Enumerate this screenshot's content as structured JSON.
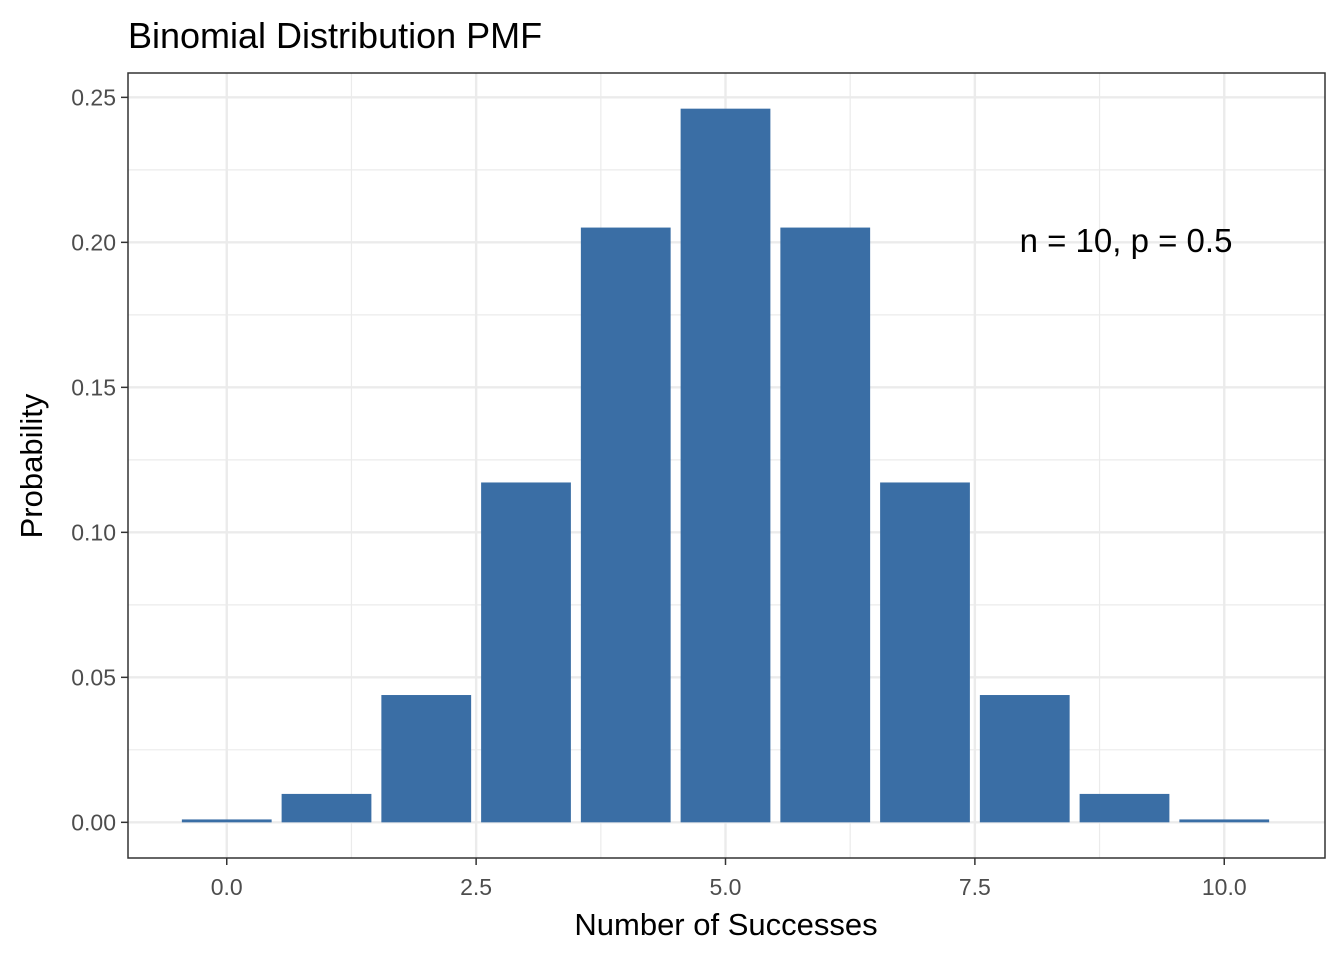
{
  "chart_data": {
    "type": "bar",
    "title": "Binomial Distribution PMF",
    "xlabel": "Number of Successes",
    "ylabel": "Probability",
    "annotation": "n = 10, p = 0.5",
    "x": [
      0,
      1,
      2,
      3,
      4,
      5,
      6,
      7,
      8,
      9,
      10
    ],
    "values": [
      0.001,
      0.0098,
      0.0439,
      0.1172,
      0.2051,
      0.2461,
      0.2051,
      0.1172,
      0.0439,
      0.0098,
      0.001
    ],
    "xlim": [
      -0.99,
      11.01
    ],
    "ylim": [
      -0.0123,
      0.2584
    ],
    "xticks": [
      0,
      2.5,
      5,
      7.5,
      10
    ],
    "xtick_labels": [
      "0.0",
      "2.5",
      "5.0",
      "7.5",
      "10.0"
    ],
    "yticks": [
      0,
      0.05,
      0.1,
      0.15,
      0.2,
      0.25
    ],
    "ytick_labels": [
      "0.00",
      "0.05",
      "0.10",
      "0.15",
      "0.20",
      "0.25"
    ],
    "bar_color": "#3a6ea5",
    "grid": true,
    "legend": "none"
  }
}
